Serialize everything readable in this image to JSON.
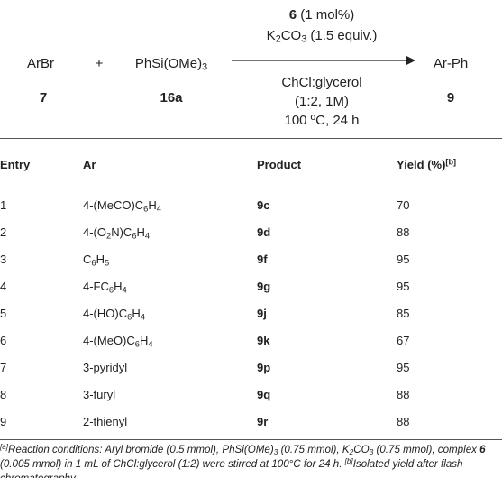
{
  "scheme": {
    "reactant1": {
      "label": "ArBr",
      "number": "7"
    },
    "plus": "+",
    "reactant2": {
      "label": "PhSi(OMe)3",
      "number": "16a"
    },
    "above": {
      "catalyst": "6",
      "loading": " (1 mol%)",
      "base": "K2CO3 (1.5 equiv.)"
    },
    "below": [
      "ChCl:glycerol",
      "(1:2, 1M)",
      "100 ºC, 24 h"
    ],
    "product": {
      "label": "Ar-Ph",
      "number": "9"
    }
  },
  "table": {
    "header": [
      "Entry",
      "Ar",
      "Product",
      "Yield (%)"
    ],
    "header_note": "[b]",
    "rows": [
      [
        "1",
        "4-(MeCO)C6H4",
        "9c",
        "70"
      ],
      [
        "2",
        "4-(O2N)C6H4",
        "9d",
        "88"
      ],
      [
        "3",
        "C6H5",
        "9f",
        "95"
      ],
      [
        "4",
        "4-FC6H4",
        "9g",
        "95"
      ],
      [
        "5",
        "4-(HO)C6H4",
        "9j",
        "85"
      ],
      [
        "6",
        "4-(MeO)C6H4",
        "9k",
        "67"
      ],
      [
        "7",
        "3-pyridyl",
        "9p",
        "95"
      ],
      [
        "8",
        "3-furyl",
        "9q",
        "88"
      ],
      [
        "9",
        "2-thienyl",
        "9r",
        "88"
      ]
    ]
  },
  "footnotes": {
    "a": {
      "marker": "[a]",
      "text1": "Reaction conditions: Aryl bromide (0.5 mmol), PhSi(OMe)3 (0.75 mmol), K2CO3 (0.75 mmol), complex ",
      "bold": "6",
      "text2": " (0.005 mmol) in 1 mL of ChCl:glycerol (1:2) were stirred at 100°C for 24 h. "
    },
    "b": {
      "marker": "[b]",
      "text": "Isolated yield after flash chromatography."
    }
  }
}
